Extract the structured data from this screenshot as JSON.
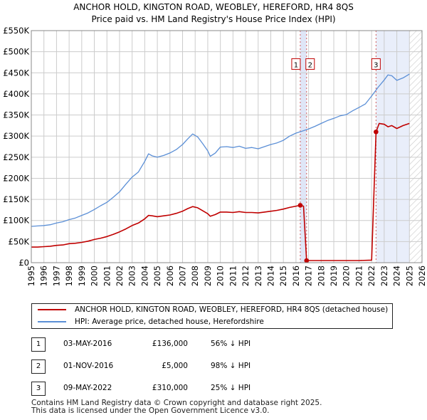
{
  "chart_data": {
    "type": "line",
    "title": "ANCHOR HOLD, KINGTON ROAD, WEOBLEY, HEREFORD, HR4 8QS",
    "subtitle": "Price paid vs. HM Land Registry's House Price Index (HPI)",
    "xlim": [
      1995,
      2026
    ],
    "ylim": [
      0,
      550000
    ],
    "x_ticks": [
      "1995",
      "1996",
      "1997",
      "1998",
      "1999",
      "2000",
      "2001",
      "2002",
      "2003",
      "2004",
      "2005",
      "2006",
      "2007",
      "2008",
      "2009",
      "2010",
      "2011",
      "2012",
      "2013",
      "2014",
      "2015",
      "2016",
      "2017",
      "2018",
      "2019",
      "2020",
      "2021",
      "2022",
      "2023",
      "2024",
      "2025",
      "2026"
    ],
    "y_ticks": [
      {
        "value": 0,
        "label": "£0"
      },
      {
        "value": 50000,
        "label": "£50K"
      },
      {
        "value": 100000,
        "label": "£100K"
      },
      {
        "value": 150000,
        "label": "£150K"
      },
      {
        "value": 200000,
        "label": "£200K"
      },
      {
        "value": 250000,
        "label": "£250K"
      },
      {
        "value": 300000,
        "label": "£300K"
      },
      {
        "value": 350000,
        "label": "£350K"
      },
      {
        "value": 400000,
        "label": "£400K"
      },
      {
        "value": 450000,
        "label": "£450K"
      },
      {
        "value": 500000,
        "label": "£500K"
      },
      {
        "value": 550000,
        "label": "£550K"
      }
    ],
    "grid": true,
    "shaded_regions": [
      {
        "x0": 2016.33,
        "x1": 2016.84,
        "color": "#dfe6f7"
      },
      {
        "x0": 2022.35,
        "x1": 2025.0,
        "color": "#e9eefa"
      }
    ],
    "hatched_region": {
      "x0": 2025.0,
      "x1": 2026.0
    },
    "markers": [
      {
        "label": "1",
        "x": 2016.34,
        "y": 136000,
        "box_y": 470000
      },
      {
        "label": "2",
        "x": 2016.84,
        "y": 5000,
        "box_y": 470000
      },
      {
        "label": "3",
        "x": 2022.35,
        "y": 310000,
        "box_y": 470000
      }
    ],
    "series": [
      {
        "name": "HPI: Average price, detached house, Herefordshire",
        "color": "#5b8fd6",
        "x": [
          1995.0,
          1995.5,
          1996.0,
          1996.5,
          1997.0,
          1997.5,
          1998.0,
          1998.5,
          1999.0,
          1999.5,
          2000.0,
          2000.5,
          2001.0,
          2001.5,
          2002.0,
          2002.5,
          2003.0,
          2003.5,
          2004.0,
          2004.3,
          2004.6,
          2005.0,
          2005.5,
          2006.0,
          2006.5,
          2007.0,
          2007.4,
          2007.8,
          2008.2,
          2008.6,
          2009.0,
          2009.2,
          2009.6,
          2010.0,
          2010.5,
          2011.0,
          2011.5,
          2012.0,
          2012.5,
          2013.0,
          2013.5,
          2014.0,
          2014.5,
          2015.0,
          2015.5,
          2016.0,
          2016.5,
          2017.0,
          2017.5,
          2018.0,
          2018.5,
          2019.0,
          2019.5,
          2020.0,
          2020.5,
          2021.0,
          2021.5,
          2022.0,
          2022.5,
          2023.0,
          2023.3,
          2023.6,
          2024.0,
          2024.5,
          2025.0
        ],
        "y": [
          86000,
          87000,
          88000,
          90000,
          94000,
          97000,
          102000,
          106000,
          112000,
          118000,
          126000,
          135000,
          143000,
          155000,
          168000,
          186000,
          203000,
          215000,
          240000,
          258000,
          253000,
          250000,
          254000,
          260000,
          268000,
          280000,
          293000,
          305000,
          298000,
          282000,
          265000,
          252000,
          260000,
          274000,
          275000,
          273000,
          276000,
          271000,
          273000,
          270000,
          275000,
          280000,
          284000,
          290000,
          300000,
          307000,
          312000,
          317000,
          323000,
          330000,
          337000,
          342000,
          348000,
          351000,
          360000,
          368000,
          376000,
          395000,
          415000,
          433000,
          445000,
          443000,
          432000,
          438000,
          447000
        ]
      },
      {
        "name": "ANCHOR HOLD, KINGTON ROAD, WEOBLEY, HEREFORD, HR4 8QS (detached house)",
        "color": "#c00000",
        "x": [
          1995.0,
          1995.5,
          1996.0,
          1996.5,
          1997.0,
          1997.5,
          1998.0,
          1998.5,
          1999.0,
          1999.5,
          2000.0,
          2000.5,
          2001.0,
          2001.5,
          2002.0,
          2002.5,
          2003.0,
          2003.5,
          2004.0,
          2004.3,
          2004.6,
          2005.0,
          2005.5,
          2006.0,
          2006.5,
          2007.0,
          2007.4,
          2007.8,
          2008.2,
          2008.6,
          2009.0,
          2009.2,
          2009.6,
          2010.0,
          2010.5,
          2011.0,
          2011.5,
          2012.0,
          2012.5,
          2013.0,
          2013.5,
          2014.0,
          2014.5,
          2015.0,
          2015.5,
          2016.0,
          2016.34,
          2016.6,
          2016.84,
          2017.0,
          2018.0,
          2019.0,
          2020.0,
          2021.0,
          2022.0,
          2022.35,
          2022.6,
          2023.0,
          2023.3,
          2023.6,
          2024.0,
          2024.5,
          2025.0
        ],
        "y": [
          37000,
          37000,
          38000,
          39000,
          41000,
          42000,
          45000,
          46000,
          48000,
          51000,
          55000,
          58000,
          62000,
          67000,
          73000,
          80000,
          88000,
          94000,
          104000,
          112000,
          111000,
          109000,
          111000,
          113000,
          117000,
          122000,
          128000,
          133000,
          130000,
          123000,
          116000,
          110000,
          114000,
          120000,
          120000,
          119000,
          121000,
          119000,
          119000,
          118000,
          120000,
          122000,
          124000,
          127000,
          131000,
          134000,
          136000,
          134000,
          5000,
          5000,
          5000,
          5000,
          5000,
          5000,
          6000,
          310000,
          330000,
          328000,
          322000,
          325000,
          318000,
          325000,
          330000
        ]
      }
    ]
  },
  "legend": {
    "items": [
      {
        "label": "ANCHOR HOLD, KINGTON ROAD, WEOBLEY, HEREFORD, HR4 8QS (detached house)",
        "color": "#c00000"
      },
      {
        "label": "HPI: Average price, detached house, Herefordshire",
        "color": "#5b8fd6"
      }
    ]
  },
  "transactions": [
    {
      "num": "1",
      "date": "03-MAY-2016",
      "price": "£136,000",
      "hpi": "56% ↓ HPI"
    },
    {
      "num": "2",
      "date": "01-NOV-2016",
      "price": "£5,000",
      "hpi": "98% ↓ HPI"
    },
    {
      "num": "3",
      "date": "09-MAY-2022",
      "price": "£310,000",
      "hpi": "25% ↓ HPI"
    }
  ],
  "footer": {
    "line1": "Contains HM Land Registry data © Crown copyright and database right 2025.",
    "line2": "This data is licensed under the Open Government Licence v3.0."
  }
}
